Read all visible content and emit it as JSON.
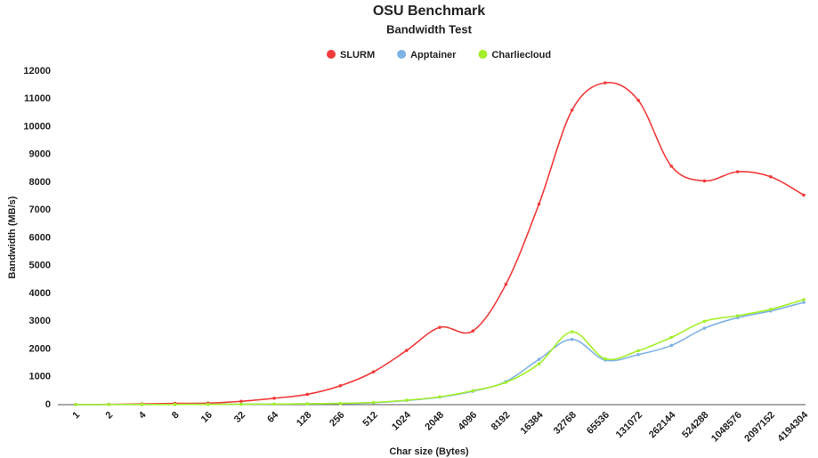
{
  "chart_data": {
    "type": "line",
    "title": "OSU Benchmark",
    "subtitle": "Bandwidth Test",
    "x_label": "Char size (Bytes)",
    "y_label": "Bandwidth (MB/s)",
    "categories": [
      "1",
      "2",
      "4",
      "8",
      "16",
      "32",
      "64",
      "128",
      "256",
      "512",
      "1024",
      "2048",
      "4096",
      "8192",
      "16384",
      "32768",
      "65536",
      "131072",
      "262144",
      "524288",
      "1048576",
      "2097152",
      "4194304"
    ],
    "series": [
      {
        "name": "SLURM",
        "color": "#f23a3a",
        "values": [
          5,
          10,
          25,
          45,
          55,
          120,
          230,
          370,
          680,
          1180,
          1950,
          2780,
          2650,
          4330,
          7220,
          10600,
          11580,
          10950,
          8580,
          8050,
          8380,
          8200,
          7540
        ]
      },
      {
        "name": "Apptainer",
        "color": "#7fb2e5",
        "values": [
          2,
          4,
          6,
          8,
          10,
          15,
          20,
          30,
          40,
          70,
          150,
          270,
          480,
          830,
          1630,
          2350,
          1600,
          1800,
          2130,
          2750,
          3130,
          3370,
          3680
        ]
      },
      {
        "name": "Charliecloud",
        "color": "#a3f02a",
        "values": [
          2,
          4,
          6,
          8,
          10,
          15,
          20,
          30,
          45,
          80,
          160,
          280,
          500,
          800,
          1470,
          2620,
          1650,
          1940,
          2420,
          3000,
          3200,
          3430,
          3780
        ]
      }
    ],
    "ylim": [
      0,
      12000
    ],
    "yticks": [
      0,
      1000,
      2000,
      3000,
      4000,
      5000,
      6000,
      7000,
      8000,
      9000,
      10000,
      11000,
      12000
    ],
    "grid": false,
    "legend": "top",
    "smooth": true
  }
}
